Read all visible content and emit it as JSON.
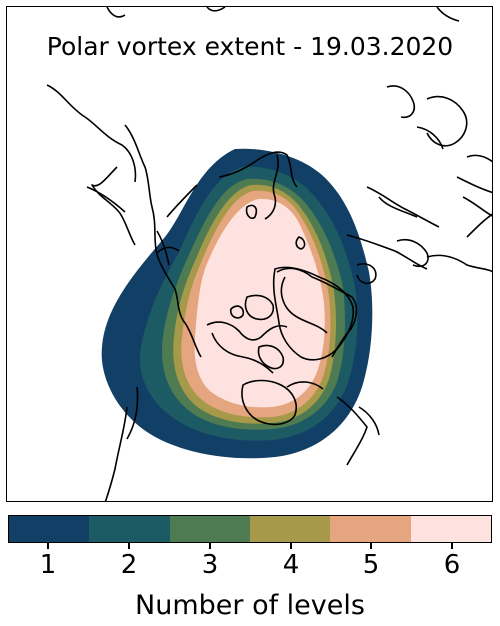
{
  "map": {
    "title": "Polar vortex extent - 19.03.2020",
    "level_colors": [
      "#123f66",
      "#1d5b64",
      "#4f7b52",
      "#a69a4a",
      "#e5a67f",
      "#fde2e0"
    ]
  },
  "colorbar": {
    "label": "Number of levels",
    "ticks": [
      "1",
      "2",
      "3",
      "4",
      "5",
      "6"
    ],
    "colors": [
      "#123f66",
      "#1d5b64",
      "#4f7b52",
      "#a69a4a",
      "#e5a67f",
      "#fde2e0"
    ]
  }
}
